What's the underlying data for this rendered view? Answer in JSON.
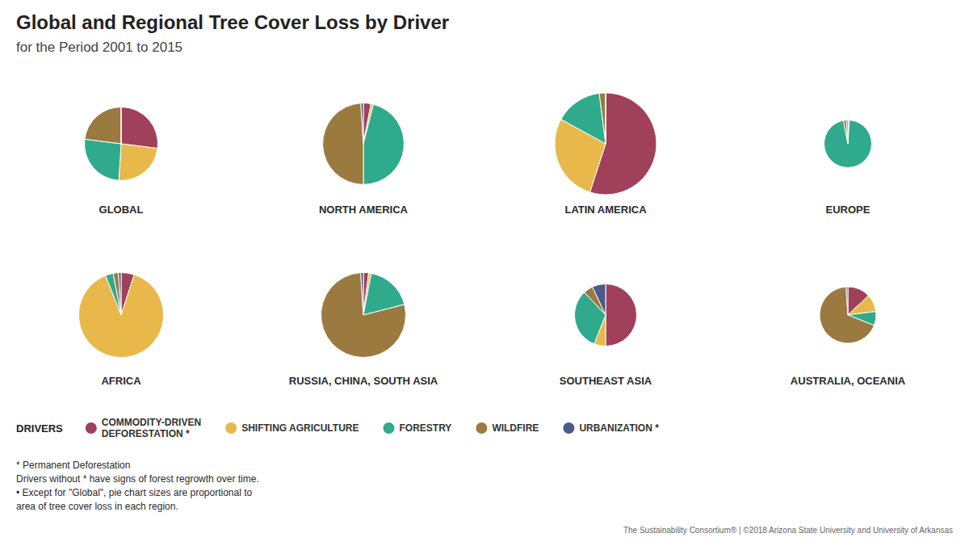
{
  "chart_data": {
    "type": "pie",
    "title": "Global and Regional Tree Cover Loss by Driver",
    "subtitle": "for the Period 2001 to 2015",
    "categories": [
      "COMMODITY-DRIVEN\nDEFORESTATION *",
      "SHIFTING AGRICULTURE",
      "FORESTRY",
      "WILDFIRE",
      "URBANIZATION *"
    ],
    "colors": [
      "#a0405a",
      "#e8b84b",
      "#2faa8c",
      "#9b7a40",
      "#4a5a8a"
    ],
    "legend_title": "DRIVERS",
    "series": [
      {
        "name": "GLOBAL",
        "values": [
          27,
          24,
          26,
          23,
          0
        ],
        "size": 0.065
      },
      {
        "name": "NORTH AMERICA",
        "values": [
          3,
          1,
          46,
          49,
          1
        ],
        "size": 0.072
      },
      {
        "name": "LATIN AMERICA",
        "values": [
          55,
          28,
          15,
          2,
          0
        ],
        "size": 0.09
      },
      {
        "name": "EUROPE",
        "values": [
          1,
          0,
          96,
          2,
          1
        ],
        "size": 0.042
      },
      {
        "name": "AFRICA",
        "values": [
          5,
          89,
          3,
          2,
          1
        ],
        "size": 0.075
      },
      {
        "name": "RUSSIA, CHINA, SOUTH ASIA",
        "values": [
          2,
          1,
          18,
          78,
          1
        ],
        "size": 0.075
      },
      {
        "name": "SOUTHEAST ASIA",
        "values": [
          50,
          6,
          32,
          5,
          7
        ],
        "size": 0.055
      },
      {
        "name": "AUSTRALIA, OCEANIA",
        "values": [
          13,
          10,
          8,
          68,
          1
        ],
        "size": 0.05
      }
    ],
    "annotations": [
      "* Permanent Deforestation",
      "Drivers without * have signs of forest regrowth over time.",
      "• Except for \"Global\", pie chart sizes are proportional to",
      "area of tree cover loss in each region.",
      "The Sustainability Consortium® | ©2018 Arizona State University and University of Arkansas"
    ]
  }
}
